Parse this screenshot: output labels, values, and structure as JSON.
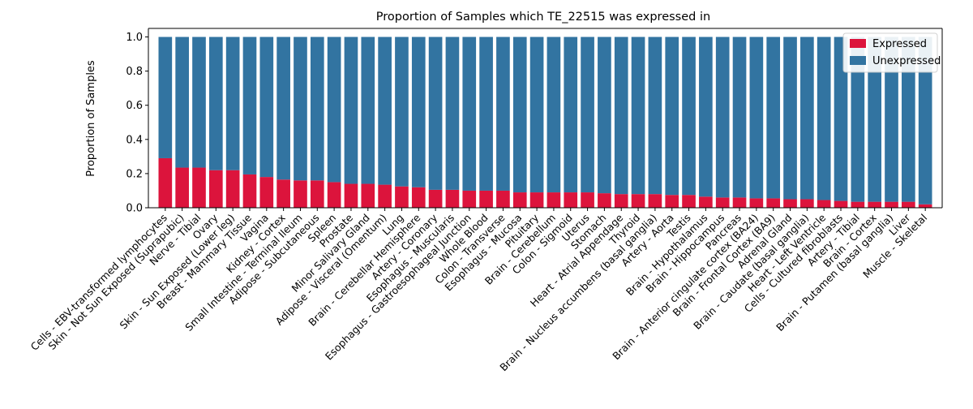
{
  "chart_data": {
    "type": "bar",
    "stacked": true,
    "title": "Proportion of Samples which TE_22515 was expressed in",
    "xlabel": "",
    "ylabel": "Proportion of Samples",
    "ylim": [
      0,
      1.05
    ],
    "yticks": [
      "0.0",
      "0.2",
      "0.4",
      "0.6",
      "0.8",
      "1.0"
    ],
    "legend_position": "top-right",
    "categories": [
      "Cells - EBV-transformed lymphocytes",
      "Skin - Not Sun Exposed (Suprapubic)",
      "Nerve - Tibial",
      "Ovary",
      "Skin - Sun Exposed (Lower leg)",
      "Breast - Mammary Tissue",
      "Vagina",
      "Kidney - Cortex",
      "Small Intestine - Terminal Ileum",
      "Adipose - Subcutaneous",
      "Spleen",
      "Prostate",
      "Minor Salivary Gland",
      "Adipose - Visceral (Omentum)",
      "Lung",
      "Brain - Cerebellar Hemisphere",
      "Artery - Coronary",
      "Esophagus - Muscularis",
      "Esophagus - Gastroesophageal Junction",
      "Whole Blood",
      "Colon - Transverse",
      "Esophagus - Mucosa",
      "Pituitary",
      "Brain - Cerebellum",
      "Colon - Sigmoid",
      "Uterus",
      "Stomach",
      "Heart - Atrial Appendage",
      "Thyroid",
      "Brain - Nucleus accumbens (basal ganglia)",
      "Artery - Aorta",
      "Testis",
      "Brain - Hypothalamus",
      "Brain - Hippocampus",
      "Pancreas",
      "Brain - Anterior cingulate cortex (BA24)",
      "Brain - Frontal Cortex (BA9)",
      "Adrenal Gland",
      "Brain - Caudate (basal ganglia)",
      "Heart - Left Ventricle",
      "Cells - Cultured fibroblasts",
      "Artery - Tibial",
      "Brain - Cortex",
      "Brain - Putamen (basal ganglia)",
      "Liver",
      "Muscle - Skeletal"
    ],
    "series": [
      {
        "name": "Expressed",
        "color": "#dc143c",
        "values": [
          0.29,
          0.235,
          0.235,
          0.22,
          0.22,
          0.195,
          0.18,
          0.165,
          0.16,
          0.16,
          0.15,
          0.14,
          0.14,
          0.135,
          0.125,
          0.12,
          0.105,
          0.105,
          0.1,
          0.1,
          0.1,
          0.09,
          0.09,
          0.09,
          0.09,
          0.09,
          0.085,
          0.08,
          0.08,
          0.08,
          0.075,
          0.075,
          0.065,
          0.06,
          0.06,
          0.055,
          0.055,
          0.05,
          0.05,
          0.045,
          0.04,
          0.035,
          0.035,
          0.035,
          0.035,
          0.02
        ]
      },
      {
        "name": "Unexpressed",
        "color": "#3274a1",
        "values": [
          0.71,
          0.765,
          0.765,
          0.78,
          0.78,
          0.805,
          0.82,
          0.835,
          0.84,
          0.84,
          0.85,
          0.86,
          0.86,
          0.865,
          0.875,
          0.88,
          0.895,
          0.895,
          0.9,
          0.9,
          0.9,
          0.91,
          0.91,
          0.91,
          0.91,
          0.91,
          0.915,
          0.92,
          0.92,
          0.92,
          0.925,
          0.925,
          0.935,
          0.94,
          0.94,
          0.945,
          0.945,
          0.95,
          0.95,
          0.955,
          0.96,
          0.965,
          0.965,
          0.965,
          0.965,
          0.98
        ]
      }
    ]
  }
}
